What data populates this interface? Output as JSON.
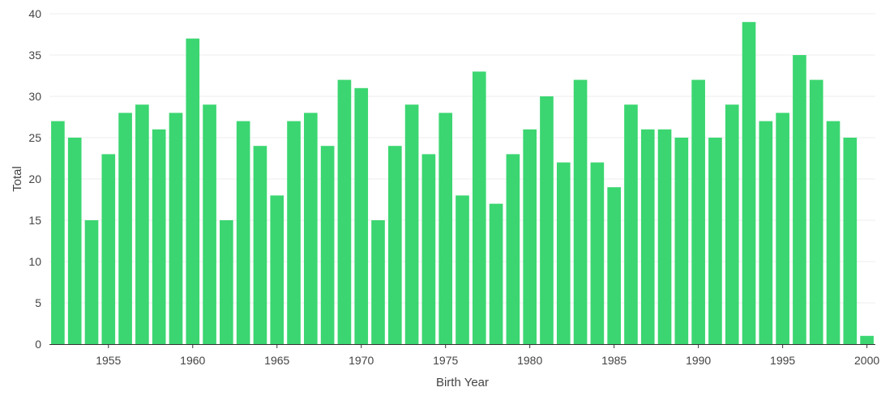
{
  "chart_data": {
    "type": "bar",
    "xlabel": "Birth Year",
    "ylabel": "Total",
    "ylim": [
      0,
      40
    ],
    "yticks": [
      0,
      5,
      10,
      15,
      20,
      25,
      30,
      35,
      40
    ],
    "xticks": [
      1955,
      1960,
      1965,
      1970,
      1975,
      1980,
      1985,
      1990,
      1995,
      2000
    ],
    "grid": true,
    "bar_color": "#3bd671",
    "categories": [
      1952,
      1953,
      1954,
      1955,
      1956,
      1957,
      1958,
      1959,
      1960,
      1961,
      1962,
      1963,
      1964,
      1965,
      1966,
      1967,
      1968,
      1969,
      1970,
      1971,
      1972,
      1973,
      1974,
      1975,
      1976,
      1977,
      1978,
      1979,
      1980,
      1981,
      1982,
      1983,
      1984,
      1985,
      1986,
      1987,
      1988,
      1989,
      1990,
      1991,
      1992,
      1993,
      1994,
      1995,
      1996,
      1997,
      1998,
      1999,
      2000
    ],
    "values": [
      27,
      25,
      15,
      23,
      28,
      29,
      26,
      28,
      37,
      29,
      15,
      27,
      24,
      18,
      27,
      28,
      24,
      32,
      31,
      15,
      24,
      29,
      23,
      28,
      18,
      33,
      17,
      23,
      26,
      30,
      22,
      32,
      22,
      19,
      29,
      26,
      26,
      25,
      32,
      25,
      29,
      39,
      27,
      28,
      35,
      32,
      27,
      25,
      1
    ]
  }
}
